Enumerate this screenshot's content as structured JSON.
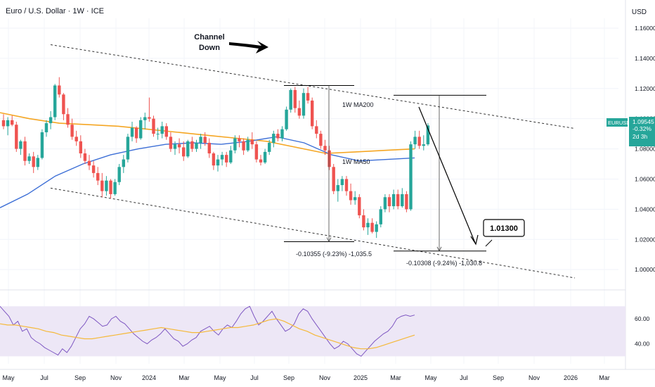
{
  "header": {
    "title": "Euro / U.S. Dollar · 1W · ICE",
    "currency": "USD"
  },
  "colors": {
    "up": "#26a69a",
    "down": "#ef5350",
    "ma200": "#f5a623",
    "ma50": "#3d6fd6",
    "rsi": "#7e57c2",
    "rsi_ma": "#f5b93a",
    "rsi_band": "#ede7f6"
  },
  "chart_data": {
    "type": "candlestick",
    "price_axis": {
      "ylim": [
        0.9875,
        1.1665
      ],
      "ticks": [
        "1.16000",
        "1.14000",
        "1.12000",
        "1.10000",
        "1.08000",
        "1.06000",
        "1.04000",
        "1.02000",
        "1.00000"
      ]
    },
    "rsi_axis": {
      "ylim": [
        24,
        82
      ],
      "ticks": [
        "60.00",
        "40.00"
      ],
      "band": [
        30,
        70
      ]
    },
    "x_axis": {
      "ticks": [
        "May",
        "Jul",
        "Sep",
        "Nov",
        "2024",
        "Mar",
        "May",
        "Jul",
        "Sep",
        "Nov",
        "2025",
        "Mar",
        "May",
        "Jul",
        "Sep",
        "Nov",
        "2026",
        "Mar"
      ]
    },
    "candles": [
      [
        1.099,
        1.103,
        1.093,
        1.095
      ],
      [
        1.095,
        1.101,
        1.089,
        1.099
      ],
      [
        1.099,
        1.102,
        1.095,
        1.096
      ],
      [
        1.096,
        1.098,
        1.078,
        1.08
      ],
      [
        1.08,
        1.086,
        1.076,
        1.085
      ],
      [
        1.085,
        1.088,
        1.069,
        1.072
      ],
      [
        1.072,
        1.077,
        1.07,
        1.075
      ],
      [
        1.075,
        1.078,
        1.064,
        1.068
      ],
      [
        1.068,
        1.076,
        1.066,
        1.074
      ],
      [
        1.074,
        1.093,
        1.073,
        1.091
      ],
      [
        1.091,
        1.099,
        1.088,
        1.097
      ],
      [
        1.097,
        1.105,
        1.093,
        1.101
      ],
      [
        1.101,
        1.123,
        1.099,
        1.122
      ],
      [
        1.122,
        1.1275,
        1.114,
        1.116
      ],
      [
        1.116,
        1.117,
        1.099,
        1.103
      ],
      [
        1.103,
        1.107,
        1.094,
        1.096
      ],
      [
        1.096,
        1.1,
        1.086,
        1.088
      ],
      [
        1.088,
        1.092,
        1.082,
        1.085
      ],
      [
        1.085,
        1.089,
        1.074,
        1.077
      ],
      [
        1.077,
        1.08,
        1.07,
        1.072
      ],
      [
        1.072,
        1.076,
        1.066,
        1.069
      ],
      [
        1.069,
        1.072,
        1.061,
        1.064
      ],
      [
        1.064,
        1.068,
        1.056,
        1.059
      ],
      [
        1.059,
        1.064,
        1.048,
        1.052
      ],
      [
        1.052,
        1.062,
        1.049,
        1.059
      ],
      [
        1.059,
        1.06,
        1.047,
        1.05
      ],
      [
        1.05,
        1.06,
        1.049,
        1.058
      ],
      [
        1.058,
        1.07,
        1.056,
        1.068
      ],
      [
        1.068,
        1.076,
        1.064,
        1.073
      ],
      [
        1.073,
        1.09,
        1.071,
        1.088
      ],
      [
        1.088,
        1.098,
        1.085,
        1.094
      ],
      [
        1.094,
        1.095,
        1.084,
        1.087
      ],
      [
        1.087,
        1.101,
        1.086,
        1.099
      ],
      [
        1.099,
        1.104,
        1.093,
        1.101
      ],
      [
        1.101,
        1.114,
        1.098,
        1.1
      ],
      [
        1.1,
        1.102,
        1.088,
        1.09
      ],
      [
        1.09,
        1.094,
        1.086,
        1.09
      ],
      [
        1.09,
        1.098,
        1.087,
        1.095
      ],
      [
        1.095,
        1.097,
        1.086,
        1.088
      ],
      [
        1.088,
        1.091,
        1.078,
        1.08
      ],
      [
        1.08,
        1.085,
        1.076,
        1.083
      ],
      [
        1.083,
        1.087,
        1.077,
        1.081
      ],
      [
        1.081,
        1.085,
        1.072,
        1.075
      ],
      [
        1.075,
        1.086,
        1.074,
        1.085
      ],
      [
        1.085,
        1.088,
        1.078,
        1.08
      ],
      [
        1.08,
        1.086,
        1.078,
        1.084
      ],
      [
        1.084,
        1.09,
        1.08,
        1.088
      ],
      [
        1.088,
        1.091,
        1.082,
        1.084
      ],
      [
        1.084,
        1.087,
        1.074,
        1.077
      ],
      [
        1.077,
        1.078,
        1.066,
        1.069
      ],
      [
        1.069,
        1.076,
        1.065,
        1.073
      ],
      [
        1.073,
        1.078,
        1.069,
        1.076
      ],
      [
        1.076,
        1.078,
        1.068,
        1.071
      ],
      [
        1.071,
        1.082,
        1.07,
        1.079
      ],
      [
        1.079,
        1.089,
        1.077,
        1.087
      ],
      [
        1.087,
        1.089,
        1.081,
        1.085
      ],
      [
        1.085,
        1.087,
        1.076,
        1.079
      ],
      [
        1.079,
        1.088,
        1.078,
        1.086
      ],
      [
        1.086,
        1.091,
        1.08,
        1.083
      ],
      [
        1.083,
        1.085,
        1.071,
        1.073
      ],
      [
        1.073,
        1.076,
        1.069,
        1.071
      ],
      [
        1.071,
        1.08,
        1.07,
        1.078
      ],
      [
        1.078,
        1.086,
        1.076,
        1.084
      ],
      [
        1.084,
        1.092,
        1.081,
        1.09
      ],
      [
        1.09,
        1.093,
        1.085,
        1.087
      ],
      [
        1.087,
        1.095,
        1.085,
        1.093
      ],
      [
        1.093,
        1.108,
        1.092,
        1.106
      ],
      [
        1.106,
        1.12,
        1.104,
        1.119
      ],
      [
        1.119,
        1.121,
        1.104,
        1.107
      ],
      [
        1.107,
        1.112,
        1.1,
        1.102
      ],
      [
        1.102,
        1.12,
        1.1,
        1.117
      ],
      [
        1.117,
        1.121,
        1.11,
        1.112
      ],
      [
        1.112,
        1.114,
        1.093,
        1.095
      ],
      [
        1.095,
        1.099,
        1.087,
        1.09
      ],
      [
        1.09,
        1.092,
        1.08,
        1.082
      ],
      [
        1.082,
        1.086,
        1.076,
        1.079
      ],
      [
        1.079,
        1.082,
        1.066,
        1.068
      ],
      [
        1.068,
        1.07,
        1.05,
        1.052
      ],
      [
        1.052,
        1.06,
        1.045,
        1.056
      ],
      [
        1.056,
        1.062,
        1.052,
        1.06
      ],
      [
        1.06,
        1.062,
        1.049,
        1.052
      ],
      [
        1.052,
        1.057,
        1.043,
        1.046
      ],
      [
        1.046,
        1.052,
        1.043,
        1.048
      ],
      [
        1.048,
        1.05,
        1.034,
        1.036
      ],
      [
        1.036,
        1.04,
        1.026,
        1.028
      ],
      [
        1.028,
        1.034,
        1.023,
        1.031
      ],
      [
        1.031,
        1.034,
        1.024,
        1.025
      ],
      [
        1.025,
        1.032,
        1.021,
        1.03
      ],
      [
        1.03,
        1.042,
        1.028,
        1.04
      ],
      [
        1.04,
        1.05,
        1.038,
        1.048
      ],
      [
        1.048,
        1.05,
        1.038,
        1.042
      ],
      [
        1.042,
        1.053,
        1.04,
        1.05
      ],
      [
        1.05,
        1.053,
        1.04,
        1.042
      ],
      [
        1.042,
        1.054,
        1.041,
        1.05
      ],
      [
        1.05,
        1.052,
        1.038,
        1.04
      ],
      [
        1.04,
        1.085,
        1.039,
        1.083
      ],
      [
        1.083,
        1.092,
        1.08,
        1.088
      ],
      [
        1.088,
        1.092,
        1.08,
        1.082
      ],
      [
        1.082,
        1.089,
        1.079,
        1.083
      ],
      [
        1.083,
        1.097,
        1.082,
        1.0955
      ]
    ],
    "ma200": [
      1.104,
      1.1,
      1.097,
      1.096,
      1.095,
      1.093,
      1.091,
      1.089,
      1.087,
      1.085,
      1.081,
      1.077,
      1.078,
      1.079,
      1.08
    ],
    "ma50": [
      1.041,
      1.05,
      1.062,
      1.07,
      1.076,
      1.08,
      1.083,
      1.084,
      1.083,
      1.085,
      1.088,
      1.084,
      1.076,
      1.072,
      1.073,
      1.074
    ],
    "rsi": [
      70,
      66,
      62,
      55,
      58,
      50,
      52,
      45,
      42,
      40,
      37,
      35,
      33,
      31,
      36,
      33,
      38,
      45,
      52,
      56,
      62,
      60,
      57,
      54,
      55,
      60,
      62,
      58,
      56,
      52,
      48,
      45,
      42,
      40,
      43,
      45,
      48,
      52,
      48,
      44,
      42,
      38,
      40,
      43,
      45,
      50,
      52,
      54,
      50,
      47,
      52,
      55,
      53,
      58,
      64,
      68,
      70,
      62,
      55,
      58,
      62,
      66,
      60,
      55,
      50,
      52,
      56,
      64,
      68,
      66,
      60,
      55,
      50,
      45,
      40,
      36,
      38,
      42,
      40,
      36,
      32,
      30,
      34,
      38,
      42,
      45,
      48,
      50,
      54,
      60,
      62,
      63,
      62,
      63
    ],
    "rsi_ma": [
      56,
      55,
      55,
      54,
      53,
      52,
      50,
      49,
      47,
      46,
      45,
      44,
      44,
      45,
      46,
      47,
      48,
      49,
      50,
      51,
      52,
      53,
      52,
      51,
      50,
      49,
      49,
      50,
      51,
      52,
      53,
      53,
      54,
      55,
      57,
      59,
      60,
      58,
      55,
      52,
      50,
      47,
      45,
      43,
      41,
      39,
      37,
      36,
      36,
      37,
      39,
      41,
      43,
      45,
      47
    ],
    "annotations": {
      "channel_label_line1": "Channel",
      "channel_label_line2": "Down",
      "ma200_label": "1W MA200",
      "ma50_label": "1W MA50",
      "drop1_label": "-0.10355 (-9.23%) -1,035.5",
      "drop2_label": "-0.10308 (-9.24%) -1,030.8",
      "target_label": "1.01300"
    },
    "price_badge": {
      "symbol": "EURUSD",
      "price": "1.09545",
      "change": "-0.32%",
      "countdown": "2d 3h"
    }
  }
}
